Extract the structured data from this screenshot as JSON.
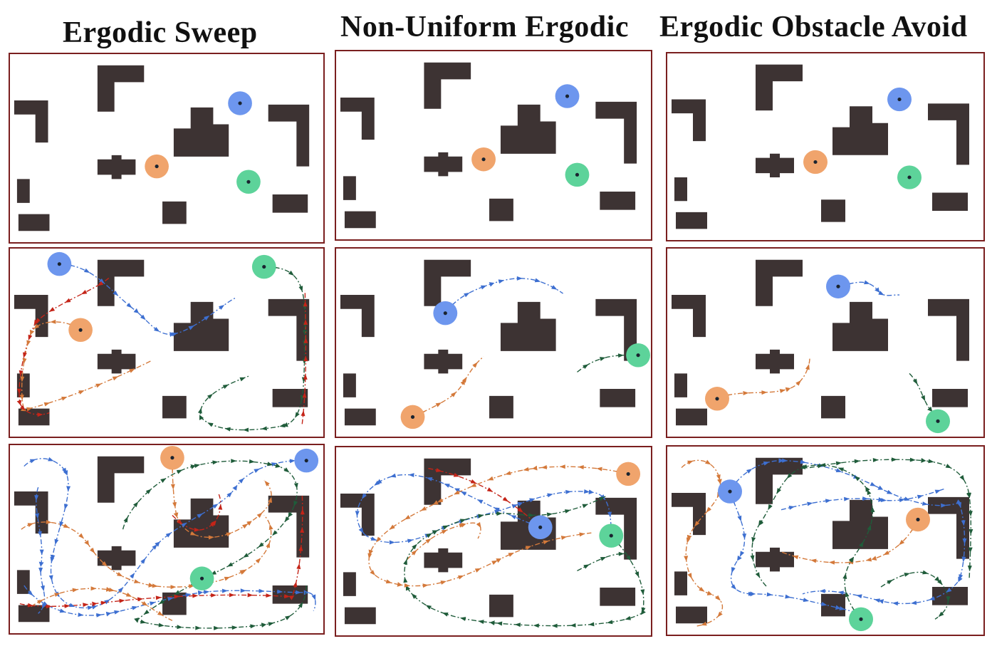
{
  "titles": [
    "Ergodic  Sweep",
    "Non-Uniform  Ergodic",
    "Ergodic  Obstacle  Avoid"
  ],
  "colors": {
    "border": "#7a1f1f",
    "obstacle": "#3d3333",
    "agent_blue": "#6d96ee",
    "agent_orange": "#f0a46c",
    "agent_green": "#5dd39a",
    "path_blue": "#3d6fd1",
    "path_orange": "#d4793a",
    "path_green": "#1f5c3a",
    "path_red": "#c42418"
  },
  "legend": []
}
